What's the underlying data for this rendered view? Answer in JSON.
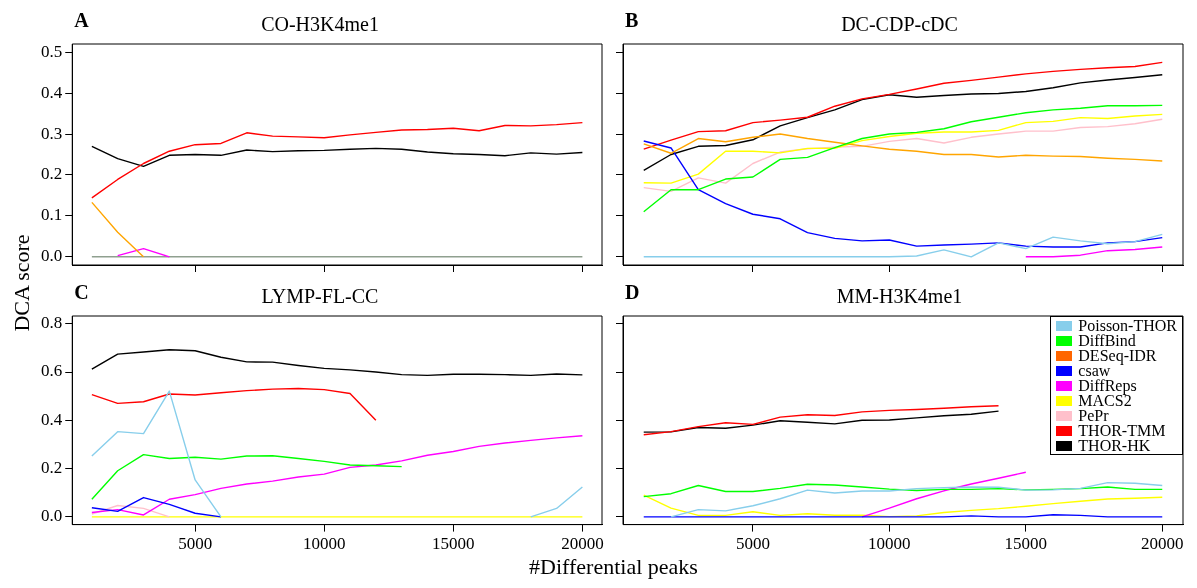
{
  "chart_data": [
    {
      "type": "line",
      "title": "CO-H3K4me1",
      "annotations": [
        "A"
      ],
      "ylabel": "DCA score",
      "marker": "none",
      "grid": false,
      "legend": false,
      "tick_labels": "y",
      "x": [
        1000,
        2000,
        3000,
        4000,
        5000,
        6000,
        7000,
        8000,
        9000,
        10000,
        11000,
        12000,
        13000,
        14000,
        15000,
        16000,
        17000,
        18000,
        19000,
        20000
      ],
      "xlim": [
        240,
        20760
      ],
      "xticks": [
        5000,
        10000,
        15000,
        20000
      ],
      "ylim": [
        -0.02,
        0.52
      ],
      "yticks": [
        {
          "value": 0,
          "label": "0.0"
        },
        {
          "value": 0.1,
          "label": "0.1"
        },
        {
          "value": 0.2,
          "label": "0.2"
        },
        {
          "value": 0.3,
          "label": "0.3"
        },
        {
          "value": 0.4,
          "label": "0.4"
        },
        {
          "value": 0.5,
          "label": "0.5"
        }
      ],
      "series": [
        {
          "color": "#ffa500",
          "values": [
            0.133,
            0.06,
            0,
            null,
            null,
            null,
            null,
            null,
            null,
            null,
            null,
            null,
            null,
            null,
            null,
            null,
            null,
            null,
            null,
            null
          ]
        },
        {
          "color": "#ff00ff",
          "values": [
            null,
            0.003,
            0.02,
            0,
            null,
            null,
            null,
            null,
            null,
            null,
            null,
            null,
            null,
            null,
            null,
            null,
            null,
            null,
            null,
            null
          ]
        },
        {
          "color": "#8fa08f",
          "values": [
            0,
            0,
            0,
            0,
            0,
            0,
            0,
            0,
            0,
            0,
            0,
            0,
            0,
            0,
            0,
            0,
            0,
            0,
            0,
            0
          ]
        },
        {
          "color": "#ff0000",
          "values": [
            0.144,
            0.189,
            0.228,
            0.258,
            0.274,
            0.277,
            0.303,
            0.295,
            0.293,
            0.291,
            0.298,
            0.304,
            0.31,
            0.311,
            0.314,
            0.308,
            0.321,
            0.32,
            0.323,
            0.328
          ]
        },
        {
          "color": "#000000",
          "values": [
            0.27,
            0.24,
            0.221,
            0.248,
            0.25,
            0.248,
            0.261,
            0.257,
            0.259,
            0.26,
            0.263,
            0.265,
            0.263,
            0.256,
            0.252,
            0.25,
            0.247,
            0.254,
            0.251,
            0.255
          ]
        }
      ]
    },
    {
      "type": "line",
      "title": "DC-CDP-cDC",
      "annotations": [
        "B"
      ],
      "marker": "none",
      "grid": false,
      "legend": false,
      "tick_labels": false,
      "x": [
        1000,
        2000,
        3000,
        4000,
        5000,
        6000,
        7000,
        8000,
        9000,
        10000,
        11000,
        12000,
        13000,
        14000,
        15000,
        16000,
        17000,
        18000,
        19000,
        20000
      ],
      "xlim": [
        240,
        20760
      ],
      "xticks": [
        5000,
        10000,
        15000,
        20000
      ],
      "ylim": [
        -0.02,
        0.52
      ],
      "yticks": [
        {
          "value": 0,
          "label": null
        },
        {
          "value": 0.1,
          "label": null
        },
        {
          "value": 0.2,
          "label": null
        },
        {
          "value": 0.3,
          "label": null
        },
        {
          "value": 0.4,
          "label": null
        },
        {
          "value": 0.5,
          "label": null
        }
      ],
      "series": [
        {
          "color": "#87ceeb",
          "values": [
            0,
            0,
            0,
            0,
            0,
            0,
            0,
            0,
            0,
            0,
            0.002,
            0.017,
            0,
            0.034,
            0.02,
            0.048,
            0.039,
            0.032,
            0.037,
            0.055
          ]
        },
        {
          "color": "#00ff00",
          "values": [
            0.11,
            0.164,
            0.164,
            0.19,
            0.195,
            0.238,
            0.243,
            0.267,
            0.289,
            0.3,
            0.304,
            0.313,
            0.33,
            0.341,
            0.352,
            0.359,
            0.363,
            0.369,
            0.369,
            0.37
          ]
        },
        {
          "color": "#ffa500",
          "values": [
            0.276,
            0.253,
            0.289,
            0.281,
            0.292,
            0.3,
            0.289,
            0.28,
            0.271,
            0.263,
            0.258,
            0.25,
            0.25,
            0.244,
            0.248,
            0.246,
            0.245,
            0.241,
            0.238,
            0.234
          ]
        },
        {
          "color": "#0000ff",
          "values": [
            0.283,
            0.266,
            0.164,
            0.13,
            0.104,
            0.093,
            0.059,
            0.045,
            0.039,
            0.041,
            0.026,
            0.029,
            0.031,
            0.034,
            0.026,
            0.024,
            0.024,
            0.034,
            0.037,
            0.047
          ]
        },
        {
          "color": "#ff00ff",
          "values": [
            null,
            null,
            null,
            null,
            null,
            null,
            null,
            null,
            null,
            null,
            null,
            null,
            null,
            null,
            0,
            0,
            0.004,
            0.015,
            0.018,
            0.024
          ]
        },
        {
          "color": "#ffff00",
          "values": [
            0.181,
            0.18,
            0.202,
            0.258,
            0.258,
            0.254,
            0.265,
            0.265,
            0.284,
            0.294,
            0.302,
            0.305,
            0.305,
            0.309,
            0.328,
            0.331,
            0.34,
            0.338,
            0.344,
            0.348
          ]
        },
        {
          "color": "#ffc0cb",
          "values": [
            0.169,
            0.16,
            0.193,
            0.18,
            0.228,
            0.256,
            0.264,
            0.268,
            0.27,
            0.282,
            0.289,
            0.278,
            0.292,
            0.3,
            0.307,
            0.307,
            0.316,
            0.318,
            0.325,
            0.336
          ]
        },
        {
          "color": "#ff0000",
          "values": [
            0.263,
            0.285,
            0.306,
            0.308,
            0.328,
            0.334,
            0.341,
            0.368,
            0.386,
            0.397,
            0.41,
            0.424,
            0.431,
            0.439,
            0.447,
            0.453,
            0.458,
            0.462,
            0.465,
            0.475
          ]
        },
        {
          "color": "#000000",
          "values": [
            0.211,
            0.25,
            0.27,
            0.272,
            0.286,
            0.32,
            0.34,
            0.359,
            0.384,
            0.396,
            0.39,
            0.394,
            0.398,
            0.399,
            0.404,
            0.413,
            0.425,
            0.432,
            0.438,
            0.445
          ]
        }
      ]
    },
    {
      "type": "line",
      "title": "LYMP-FL-CC",
      "annotations": [
        "C"
      ],
      "xlabel": "#Differential peaks",
      "marker": "none",
      "grid": false,
      "legend": false,
      "x": [
        1000,
        2000,
        3000,
        4000,
        5000,
        6000,
        7000,
        8000,
        9000,
        10000,
        11000,
        12000,
        13000,
        14000,
        15000,
        16000,
        17000,
        18000,
        19000,
        20000
      ],
      "xlim": [
        240,
        20760
      ],
      "xticks": [
        5000,
        10000,
        15000,
        20000
      ],
      "ylim": [
        -0.032,
        0.832
      ],
      "yticks": [
        {
          "value": 0,
          "label": "0.0"
        },
        {
          "value": 0.2,
          "label": "0.2"
        },
        {
          "value": 0.4,
          "label": "0.4"
        },
        {
          "value": 0.6,
          "label": "0.6"
        },
        {
          "value": 0.8,
          "label": "0.8"
        }
      ],
      "series": [
        {
          "color": "#87ceeb",
          "values": [
            0.252,
            0.353,
            0.345,
            0.521,
            0.153,
            0,
            null,
            null,
            null,
            null,
            null,
            null,
            null,
            null,
            null,
            null,
            null,
            0,
            0.035,
            0.124
          ]
        },
        {
          "color": "#00ff00",
          "values": [
            0.073,
            0.191,
            0.258,
            0.242,
            0.247,
            0.239,
            0.252,
            0.253,
            0.242,
            0.23,
            0.215,
            0.212,
            0.208,
            null,
            null,
            null,
            null,
            null,
            null,
            null
          ]
        },
        {
          "color": "#0000ff",
          "values": [
            0.038,
            0.023,
            0.08,
            0.052,
            0.015,
            0,
            null,
            null,
            null,
            null,
            null,
            null,
            null,
            null,
            null,
            null,
            null,
            null,
            null,
            null
          ]
        },
        {
          "color": "#ff00ff",
          "values": [
            0.018,
            0.03,
            0.008,
            0.073,
            0.092,
            0.118,
            0.136,
            0.148,
            0.165,
            0.177,
            0.205,
            0.215,
            0.232,
            0.255,
            0.271,
            0.292,
            0.306,
            0.317,
            0.327,
            0.336
          ]
        },
        {
          "color": "#ffc0cb",
          "values": [
            0.012,
            0.047,
            0.035,
            0,
            null,
            null,
            null,
            null,
            null,
            null,
            null,
            null,
            null,
            null,
            null,
            null,
            null,
            null,
            null,
            null
          ]
        },
        {
          "color": "#ffff00",
          "values": [
            0,
            0,
            0,
            0,
            0,
            0,
            0,
            0,
            0,
            0,
            0,
            0,
            0,
            0,
            0,
            0,
            0,
            0,
            0,
            0
          ]
        },
        {
          "color": "#ff0000",
          "values": [
            0.506,
            0.47,
            0.477,
            0.509,
            0.505,
            0.514,
            0.523,
            0.529,
            0.532,
            0.527,
            0.511,
            0.4,
            null,
            null,
            null,
            null,
            null,
            null,
            null,
            null
          ]
        },
        {
          "color": "#000000",
          "values": [
            0.612,
            0.674,
            0.683,
            0.692,
            0.688,
            0.661,
            0.642,
            0.641,
            0.627,
            0.615,
            0.609,
            0.6,
            0.589,
            0.586,
            0.591,
            0.591,
            0.589,
            0.586,
            0.592,
            0.588
          ]
        }
      ]
    },
    {
      "type": "line",
      "title": "MM-H3K4me1",
      "annotations": [
        "D"
      ],
      "marker": "none",
      "grid": false,
      "legend": "top right",
      "tick_labels": "x",
      "x": [
        1000,
        2000,
        3000,
        4000,
        5000,
        6000,
        7000,
        8000,
        9000,
        10000,
        11000,
        12000,
        13000,
        14000,
        15000,
        16000,
        17000,
        18000,
        19000,
        20000
      ],
      "xlim": [
        240,
        20760
      ],
      "xticks": [
        5000,
        10000,
        15000,
        20000
      ],
      "ylim": [
        -0.032,
        0.832
      ],
      "yticks": [
        {
          "value": 0,
          "label": null
        },
        {
          "value": 0.2,
          "label": null
        },
        {
          "value": 0.4,
          "label": null
        },
        {
          "value": 0.6,
          "label": null
        },
        {
          "value": 0.8,
          "label": null
        }
      ],
      "series": [
        {
          "name": "Poisson-THOR",
          "color": "#87ceeb",
          "values": [
            null,
            0,
            0.03,
            0.025,
            0.046,
            0.075,
            0.111,
            0.099,
            0.107,
            0.107,
            0.117,
            0.121,
            0.124,
            0.123,
            0.111,
            0.112,
            0.118,
            0.142,
            0.139,
            0.13
          ]
        },
        {
          "name": "DiffBind",
          "color": "#00ff00",
          "values": [
            0.084,
            0.096,
            0.13,
            0.105,
            0.105,
            0.118,
            0.135,
            0.132,
            0.124,
            0.115,
            0.109,
            0.114,
            0.114,
            0.117,
            0.112,
            0.114,
            0.117,
            0.124,
            0.114,
            0.114
          ]
        },
        {
          "name": "DESeq-IDR",
          "color": "#ff6600",
          "values": [
            null,
            null,
            null,
            null,
            null,
            null,
            null,
            null,
            null,
            null,
            null,
            null,
            null,
            null,
            null,
            null,
            null,
            null,
            null,
            null
          ]
        },
        {
          "name": "csaw",
          "color": "#0000ff",
          "values": [
            0,
            0,
            0,
            0,
            0,
            0,
            0,
            0,
            0,
            0,
            0,
            0,
            0.004,
            0,
            0,
            0.009,
            0.006,
            0,
            0,
            0
          ]
        },
        {
          "name": "DiffReps",
          "color": "#ff00ff",
          "values": [
            null,
            null,
            null,
            null,
            null,
            null,
            null,
            null,
            0,
            0.036,
            0.075,
            0.108,
            0.136,
            0.16,
            0.185,
            null,
            null,
            null,
            null,
            null
          ]
        },
        {
          "name": "MACS2",
          "color": "#ffff00",
          "values": [
            0.09,
            0.036,
            0.006,
            0.006,
            0.021,
            0.006,
            0.013,
            0.007,
            0.007,
            0.001,
            0.004,
            0.018,
            0.027,
            0.034,
            0.044,
            0.055,
            0.065,
            0.074,
            0.077,
            0.081
          ]
        },
        {
          "name": "PePr",
          "color": "#ffc0cb",
          "values": [
            null,
            null,
            null,
            null,
            null,
            null,
            null,
            null,
            null,
            null,
            null,
            null,
            null,
            null,
            null,
            null,
            null,
            null,
            null,
            null
          ]
        },
        {
          "name": "THOR-TMM",
          "color": "#ff0000",
          "values": [
            0.34,
            0.353,
            0.374,
            0.39,
            0.383,
            0.413,
            0.423,
            0.42,
            0.435,
            0.441,
            0.445,
            0.45,
            0.456,
            0.46,
            null,
            null,
            null,
            null,
            null,
            null
          ]
        },
        {
          "name": "THOR-HK",
          "color": "#000000",
          "values": [
            0.351,
            0.352,
            0.37,
            0.367,
            0.38,
            0.398,
            0.392,
            0.385,
            0.4,
            0.401,
            0.41,
            0.419,
            0.425,
            0.438,
            null,
            null,
            null,
            null,
            null,
            null
          ]
        }
      ]
    }
  ]
}
